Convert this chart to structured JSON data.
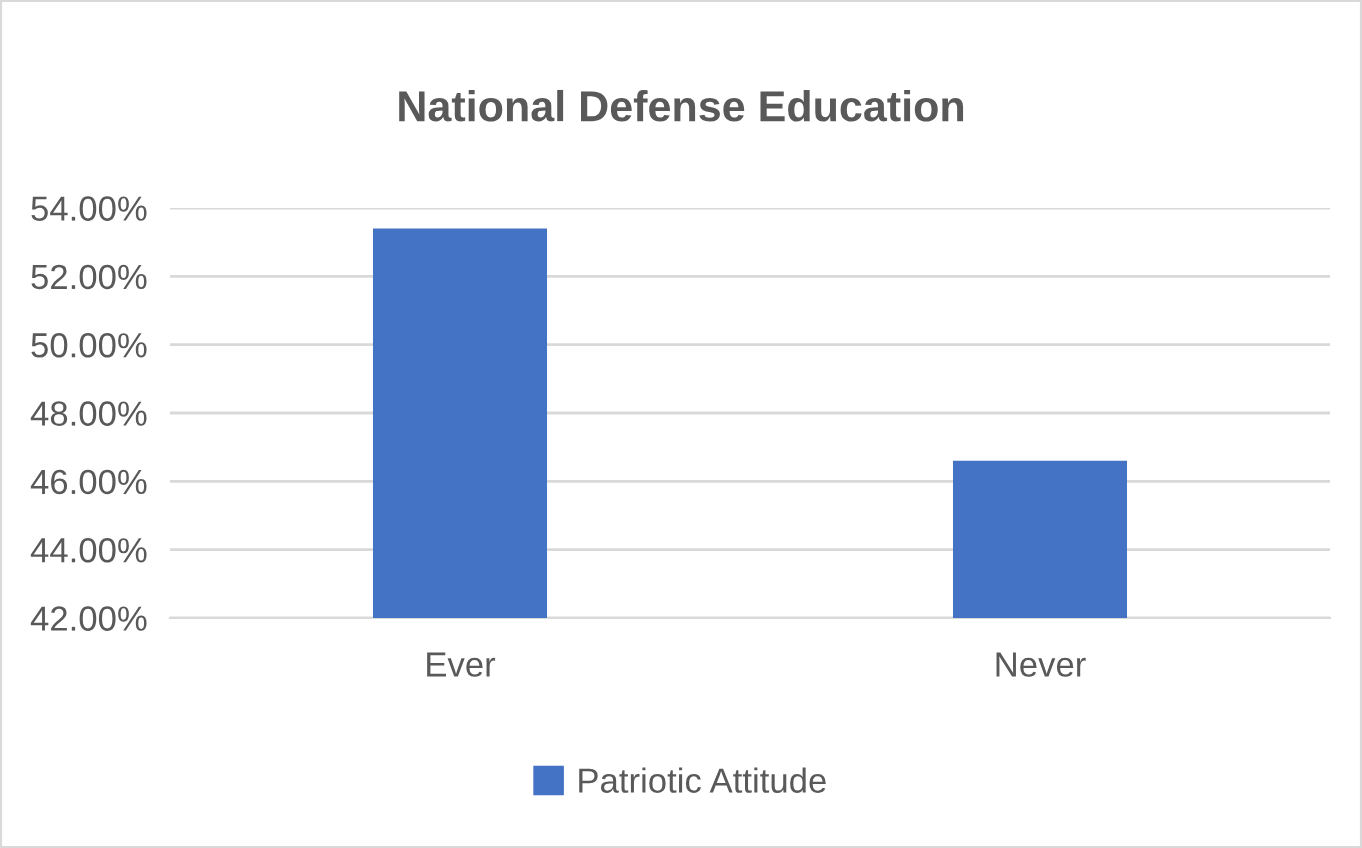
{
  "chart_data": {
    "type": "bar",
    "title": "National Defense Education",
    "categories": [
      "Ever",
      "Never"
    ],
    "series": [
      {
        "name": "Patriotic Attitude",
        "color": "#4472c4",
        "values": [
          53.4,
          46.6
        ]
      }
    ],
    "ylim": [
      42,
      54
    ],
    "yticks": [
      {
        "value": 42,
        "label": "42.00%"
      },
      {
        "value": 44,
        "label": "44.00%"
      },
      {
        "value": 46,
        "label": "46.00%"
      },
      {
        "value": 48,
        "label": "48.00%"
      },
      {
        "value": 50,
        "label": "50.00%"
      },
      {
        "value": 52,
        "label": "52.00%"
      },
      {
        "value": 54,
        "label": "54.00%"
      }
    ],
    "grid": "y",
    "legend": "bottom"
  }
}
